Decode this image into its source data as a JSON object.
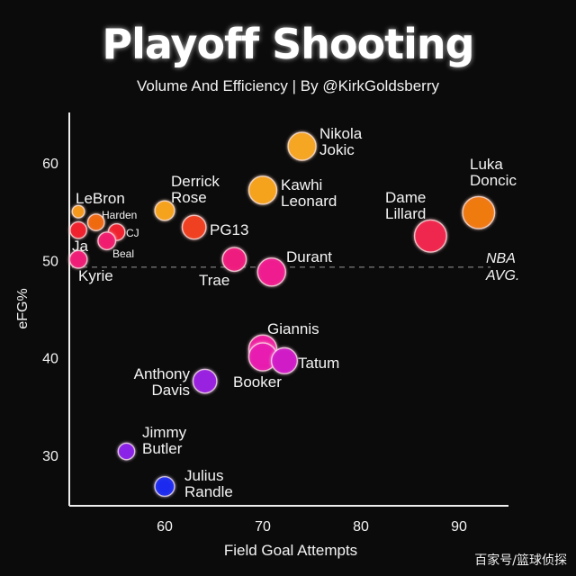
{
  "chart_data": {
    "type": "scatter",
    "title": "Playoff Shooting",
    "subtitle": "Volume And Efficiency | By @KirkGoldsberry",
    "xlabel": "Field Goal Attempts",
    "ylabel": "eFG%",
    "xlim": [
      50,
      98
    ],
    "ylim": [
      24,
      66
    ],
    "xticks": [
      "60",
      "70",
      "80",
      "90"
    ],
    "yticks": [
      "30",
      "40",
      "50",
      "60"
    ],
    "grid": false,
    "reference_line": {
      "label_lines": [
        "NBA",
        "AVG."
      ],
      "y": 49.3
    },
    "points": [
      {
        "name_lines": [
          "Nikola",
          "Jokic"
        ],
        "x": 74,
        "y": 61.7,
        "size": 10,
        "color": "#f5a623"
      },
      {
        "name_lines": [
          "Kawhi",
          "Leonard"
        ],
        "x": 70,
        "y": 57.2,
        "size": 10,
        "color": "#f5a31a"
      },
      {
        "name_lines": [
          "Luka",
          "Doncic"
        ],
        "x": 92,
        "y": 54.9,
        "size": 12,
        "color": "#f07a10"
      },
      {
        "name_lines": [
          "Dame",
          "Lillard"
        ],
        "x": 87.1,
        "y": 52.5,
        "size": 12,
        "color": "#f0264e"
      },
      {
        "name_lines": [
          "Derrick",
          "Rose"
        ],
        "x": 60,
        "y": 55.1,
        "size": 6,
        "color": "#f5a31a"
      },
      {
        "name_lines": [
          "PG13"
        ],
        "x": 63,
        "y": 53.4,
        "size": 8,
        "color": "#f04020"
      },
      {
        "name_lines": [
          "LeBron"
        ],
        "x": 51.2,
        "y": 55.0,
        "size": 2.5,
        "color": "#f59a1a"
      },
      {
        "name_lines": [
          "Harden"
        ],
        "x": 53.0,
        "y": 53.9,
        "size": 4.5,
        "color": "#f06a10"
      },
      {
        "name_lines": [
          "CJ"
        ],
        "x": 55.1,
        "y": 52.9,
        "size": 4.5,
        "color": "#f0202e"
      },
      {
        "name_lines": [
          "Ja"
        ],
        "x": 51.2,
        "y": 53.1,
        "size": 4.5,
        "color": "#f0202e"
      },
      {
        "name_lines": [
          "Beal"
        ],
        "x": 54.1,
        "y": 52.0,
        "size": 5,
        "color": "#f01c70"
      },
      {
        "name_lines": [
          "Kyrie"
        ],
        "x": 51.2,
        "y": 50.1,
        "size": 5,
        "color": "#f01c78"
      },
      {
        "name_lines": [
          "Trae"
        ],
        "x": 67.1,
        "y": 50.1,
        "size": 8,
        "color": "#f01c80"
      },
      {
        "name_lines": [
          "Durant"
        ],
        "x": 70.9,
        "y": 48.8,
        "size": 10,
        "color": "#f01c90"
      },
      {
        "name_lines": [
          "Giannis"
        ],
        "x": 70,
        "y": 40.9,
        "size": 10,
        "color": "#f01ca0"
      },
      {
        "name_lines": [
          "Booker"
        ],
        "x": 70,
        "y": 40.1,
        "size": 10,
        "color": "#e81cb0"
      },
      {
        "name_lines": [
          "Tatum"
        ],
        "x": 72.2,
        "y": 39.7,
        "size": 9,
        "color": "#d01cc8"
      },
      {
        "name_lines": [
          "Anthony",
          "Davis"
        ],
        "x": 64.1,
        "y": 37.6,
        "size": 8,
        "color": "#9a20e0"
      },
      {
        "name_lines": [
          "Jimmy",
          "Butler"
        ],
        "x": 56.1,
        "y": 30.4,
        "size": 4.5,
        "color": "#8a20e8"
      },
      {
        "name_lines": [
          "Julius",
          "Randle"
        ],
        "x": 60,
        "y": 26.8,
        "size": 6,
        "color": "#1c2cf0"
      }
    ]
  },
  "watermark": "百家号/篮球侦探"
}
